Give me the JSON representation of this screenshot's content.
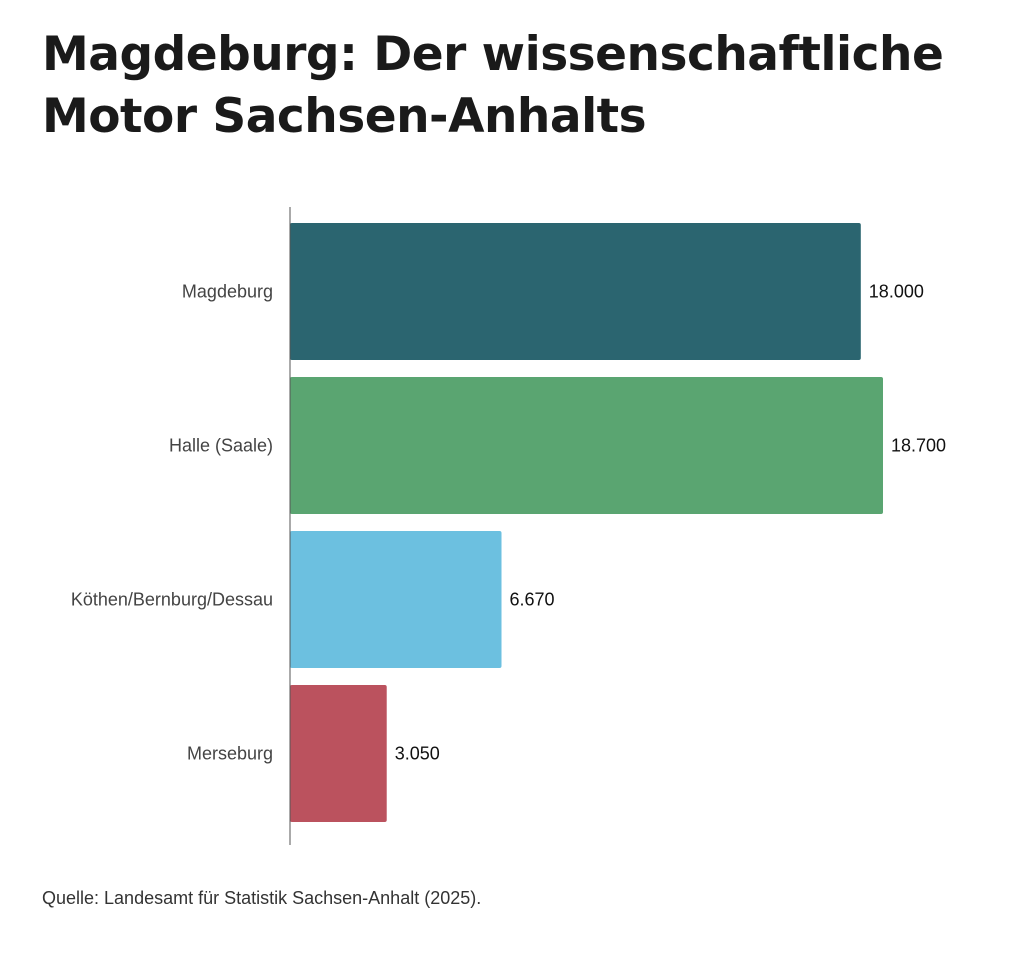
{
  "chart_data": {
    "type": "bar",
    "orientation": "horizontal",
    "title": "Magdeburg: Der wissenschaftliche Motor Sachsen-Anhalts",
    "categories": [
      "Magdeburg",
      "Halle (Saale)",
      "Köthen/Bernburg/Dessau",
      "Merseburg"
    ],
    "values": [
      18000,
      18700,
      6670,
      3050
    ],
    "value_labels": [
      "18.000",
      "18.700",
      "6.670",
      "3.050"
    ],
    "colors": [
      "#2b6570",
      "#5aa571",
      "#6cc0e0",
      "#bb525e"
    ],
    "xlim": [
      0,
      18700
    ],
    "xlabel": "",
    "ylabel": "",
    "grid": false
  },
  "source": "Quelle: Landesamt für Statistik Sachsen-Anhalt (2025)."
}
